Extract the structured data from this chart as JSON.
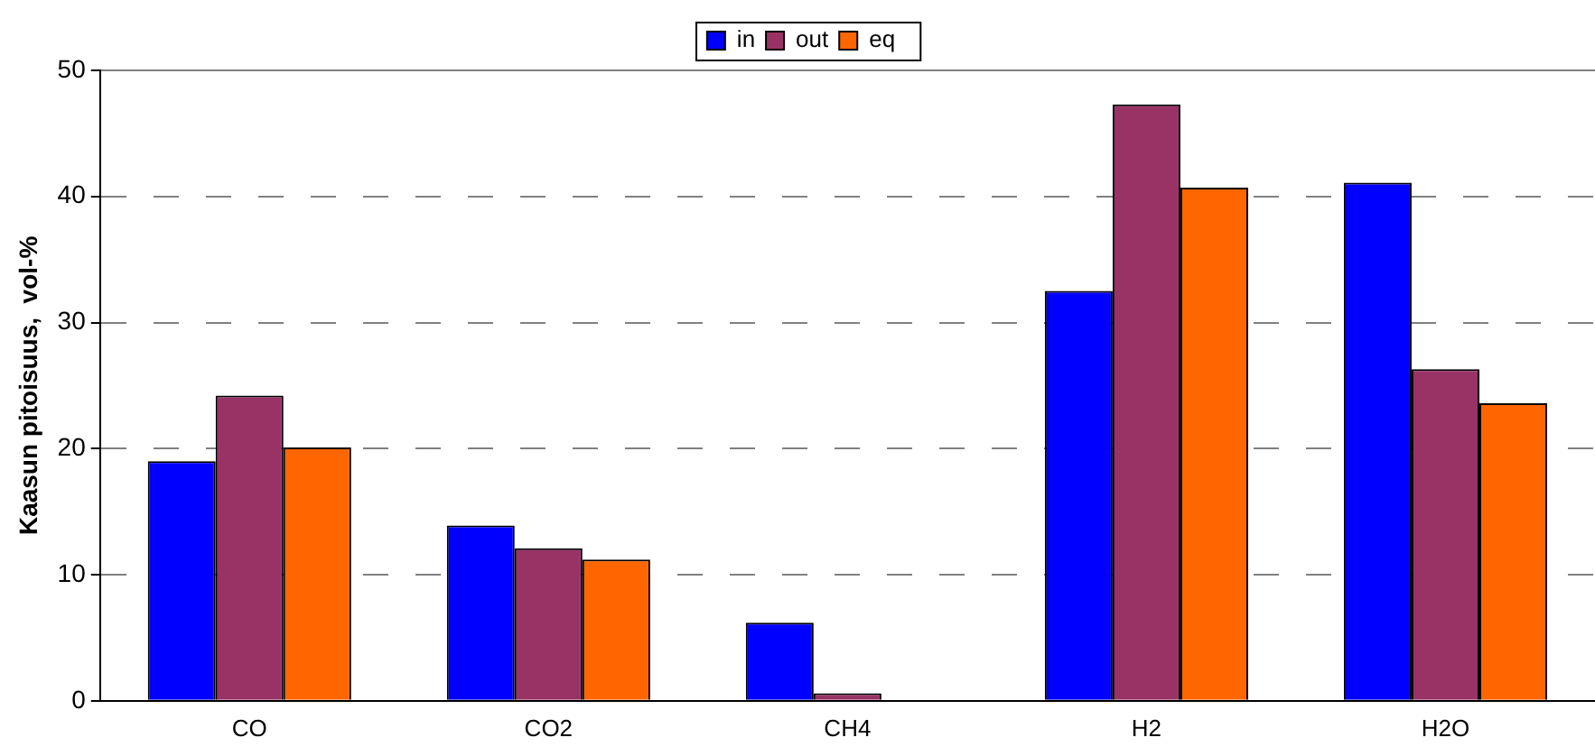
{
  "chart_data": {
    "type": "bar",
    "ylabel": "Kaasun pitoisuus,  vol-%",
    "categories": [
      "CO",
      "CO2",
      "CH4",
      "H2",
      "H2O"
    ],
    "series": [
      {
        "name": "in",
        "color": "#0000ff",
        "values": [
          19.0,
          13.9,
          6.2,
          32.5,
          41.1
        ]
      },
      {
        "name": "out",
        "color": "#993366",
        "values": [
          24.2,
          12.1,
          0.6,
          47.3,
          26.3
        ]
      },
      {
        "name": "eq",
        "color": "#ff6600",
        "values": [
          20.1,
          11.2,
          0,
          40.7,
          23.6
        ]
      }
    ],
    "ylim": [
      0,
      50
    ],
    "yticks": [
      0,
      10,
      20,
      30,
      40,
      50
    ],
    "grid": "y",
    "legend": "top"
  }
}
